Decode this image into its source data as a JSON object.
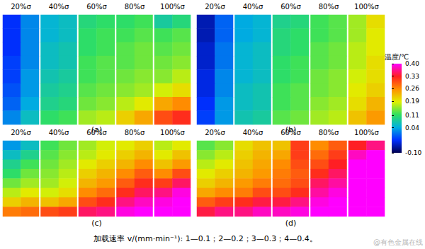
{
  "chart_data": {
    "type": "heatmap",
    "panels": [
      {
        "label": "(a)",
        "columns": [
          "20%σ",
          "40%σ",
          "60%σ",
          "80%σ",
          "100%σ"
        ],
        "cells": [
          [
            [
              -0.03,
              0.02
            ],
            [
              -0.03,
              0.02
            ],
            [
              -0.03,
              0.02
            ],
            [
              -0.02,
              0.02
            ],
            [
              -0.02,
              0.03
            ],
            [
              -0.01,
              0.03
            ],
            [
              0.0,
              0.04
            ],
            [
              0.02,
              0.06
            ]
          ],
          [
            [
              0.05,
              0.06
            ],
            [
              0.05,
              0.06
            ],
            [
              0.06,
              0.07
            ],
            [
              0.06,
              0.07
            ],
            [
              0.07,
              0.08
            ],
            [
              0.08,
              0.09
            ],
            [
              0.09,
              0.1
            ],
            [
              0.11,
              0.12
            ]
          ],
          [
            [
              0.1,
              0.11
            ],
            [
              0.11,
              0.12
            ],
            [
              0.11,
              0.12
            ],
            [
              0.12,
              0.13
            ],
            [
              0.12,
              0.13
            ],
            [
              0.13,
              0.14
            ],
            [
              0.14,
              0.15
            ],
            [
              0.16,
              0.17
            ]
          ],
          [
            [
              0.11,
              0.12
            ],
            [
              0.12,
              0.13
            ],
            [
              0.13,
              0.14
            ],
            [
              0.13,
              0.14
            ],
            [
              0.14,
              0.15
            ],
            [
              0.15,
              0.16
            ],
            [
              0.17,
              0.19
            ],
            [
              0.21,
              0.24
            ]
          ],
          [
            [
              0.08,
              0.1
            ],
            [
              0.12,
              0.13
            ],
            [
              0.13,
              0.14
            ],
            [
              0.14,
              0.15
            ],
            [
              0.15,
              0.17
            ],
            [
              0.18,
              0.2
            ],
            [
              0.24,
              0.26
            ],
            [
              0.3,
              0.32
            ]
          ]
        ]
      },
      {
        "label": "(b)",
        "columns": [
          "20%σ",
          "40%σ",
          "60%σ",
          "80%σ",
          "100%σ"
        ],
        "cells": [
          [
            [
              -0.06,
              0.0
            ],
            [
              -0.06,
              0.0
            ],
            [
              -0.05,
              0.01
            ],
            [
              -0.05,
              0.01
            ],
            [
              -0.04,
              0.02
            ],
            [
              -0.04,
              0.02
            ],
            [
              -0.03,
              0.03
            ],
            [
              -0.02,
              0.03
            ]
          ],
          [
            [
              0.04,
              0.05
            ],
            [
              0.04,
              0.05
            ],
            [
              0.05,
              0.06
            ],
            [
              0.05,
              0.06
            ],
            [
              0.05,
              0.06
            ],
            [
              0.06,
              0.07
            ],
            [
              0.06,
              0.07
            ],
            [
              0.07,
              0.08
            ]
          ],
          [
            [
              0.09,
              0.1
            ],
            [
              0.1,
              0.11
            ],
            [
              0.1,
              0.11
            ],
            [
              0.11,
              0.12
            ],
            [
              0.11,
              0.12
            ],
            [
              0.12,
              0.13
            ],
            [
              0.12,
              0.13
            ],
            [
              0.13,
              0.14
            ]
          ],
          [
            [
              0.12,
              0.13
            ],
            [
              0.12,
              0.13
            ],
            [
              0.13,
              0.14
            ],
            [
              0.13,
              0.14
            ],
            [
              0.14,
              0.15
            ],
            [
              0.14,
              0.15
            ],
            [
              0.15,
              0.16
            ],
            [
              0.16,
              0.17
            ]
          ],
          [
            [
              0.16,
              0.2
            ],
            [
              0.16,
              0.19
            ],
            [
              0.17,
              0.19
            ],
            [
              0.17,
              0.2
            ],
            [
              0.18,
              0.2
            ],
            [
              0.19,
              0.21
            ],
            [
              0.2,
              0.23
            ],
            [
              0.22,
              0.25
            ]
          ]
        ]
      },
      {
        "label": "(c)",
        "columns": [
          "20%σ",
          "40%σ",
          "60%σ",
          "80%σ",
          "100%σ"
        ],
        "cells": [
          [
            [
              0.03,
              0.06
            ],
            [
              0.06,
              0.09
            ],
            [
              0.09,
              0.12
            ],
            [
              0.11,
              0.14
            ],
            [
              0.14,
              0.16
            ],
            [
              0.17,
              0.19
            ],
            [
              0.21,
              0.23
            ],
            [
              0.27,
              0.28
            ]
          ],
          [
            [
              0.12,
              0.14
            ],
            [
              0.13,
              0.15
            ],
            [
              0.14,
              0.16
            ],
            [
              0.15,
              0.17
            ],
            [
              0.16,
              0.18
            ],
            [
              0.18,
              0.2
            ],
            [
              0.22,
              0.24
            ],
            [
              0.3,
              0.31
            ]
          ],
          [
            [
              0.16,
              0.18
            ],
            [
              0.17,
              0.19
            ],
            [
              0.19,
              0.21
            ],
            [
              0.21,
              0.23
            ],
            [
              0.23,
              0.25
            ],
            [
              0.26,
              0.28
            ],
            [
              0.3,
              0.32
            ],
            [
              0.35,
              0.36
            ]
          ],
          [
            [
              0.19,
              0.21
            ],
            [
              0.21,
              0.23
            ],
            [
              0.23,
              0.26
            ],
            [
              0.26,
              0.29
            ],
            [
              0.29,
              0.32
            ],
            [
              0.32,
              0.35
            ],
            [
              0.36,
              0.38
            ],
            [
              0.39,
              0.4
            ]
          ],
          [
            [
              0.17,
              0.19
            ],
            [
              0.19,
              0.22
            ],
            [
              0.22,
              0.25
            ],
            [
              0.26,
              0.3
            ],
            [
              0.31,
              0.35
            ],
            [
              0.36,
              0.39
            ],
            [
              0.39,
              0.4
            ],
            [
              0.4,
              0.4
            ]
          ]
        ]
      },
      {
        "label": "(d)",
        "columns": [
          "20%σ",
          "40%σ",
          "60%σ",
          "80%σ",
          "100%σ"
        ],
        "cells": [
          [
            [
              0.13,
              0.15
            ],
            [
              0.15,
              0.17
            ],
            [
              0.17,
              0.19
            ],
            [
              0.19,
              0.21
            ],
            [
              0.21,
              0.23
            ],
            [
              0.24,
              0.26
            ],
            [
              0.29,
              0.31
            ],
            [
              0.34,
              0.36
            ]
          ],
          [
            [
              0.2,
              0.22
            ],
            [
              0.21,
              0.23
            ],
            [
              0.22,
              0.24
            ],
            [
              0.23,
              0.25
            ],
            [
              0.25,
              0.27
            ],
            [
              0.27,
              0.3
            ],
            [
              0.32,
              0.34
            ],
            [
              0.36,
              0.38
            ]
          ],
          [
            [
              0.22,
              0.31
            ],
            [
              0.24,
              0.31
            ],
            [
              0.26,
              0.3
            ],
            [
              0.27,
              0.29
            ],
            [
              0.28,
              0.3
            ],
            [
              0.3,
              0.32
            ],
            [
              0.34,
              0.36
            ],
            [
              0.38,
              0.39
            ]
          ],
          [
            [
              0.26,
              0.29
            ],
            [
              0.28,
              0.31
            ],
            [
              0.3,
              0.33
            ],
            [
              0.32,
              0.35
            ],
            [
              0.35,
              0.37
            ],
            [
              0.37,
              0.39
            ],
            [
              0.39,
              0.4
            ],
            [
              0.4,
              0.4
            ]
          ],
          [
            [
              0.33,
              0.36
            ],
            [
              0.38,
              0.4
            ],
            [
              0.4,
              0.4
            ],
            [
              0.4,
              0.4
            ],
            [
              0.4,
              0.4
            ],
            [
              0.4,
              0.4
            ],
            [
              0.4,
              0.4
            ],
            [
              0.4,
              0.4
            ]
          ]
        ]
      }
    ],
    "colorbar": {
      "title": "温度/℃",
      "range": [
        -0.1,
        0.4
      ],
      "ticks": [
        {
          "value": 0.4,
          "label": "0.40"
        },
        0.33,
        0.26,
        0.19,
        0.11,
        0.04,
        {
          "value": -0.1,
          "label": "-0.10"
        }
      ]
    },
    "caption": "加载速率 v/(mm·min⁻¹): 1—0.1；2—0.2；3—0.3；4—0.4。",
    "watermark": "@有色金属在线"
  }
}
